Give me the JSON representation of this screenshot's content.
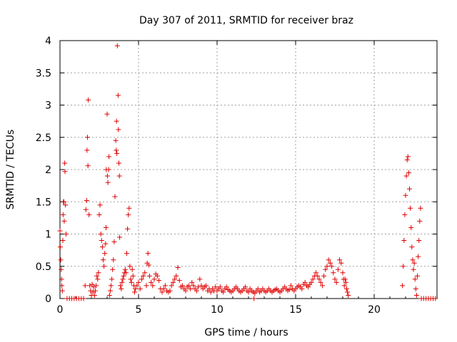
{
  "chart_data": {
    "type": "scatter",
    "title": "Day 307 of 2011, SRMTID for receiver braz",
    "xlabel": "GPS time / hours",
    "ylabel": "SRMTID / TECUs",
    "xlim": [
      0,
      24
    ],
    "ylim": [
      0,
      4
    ],
    "xticks": [
      0,
      5,
      10,
      15,
      20
    ],
    "xtick_labels": [
      "0",
      "5",
      "10",
      "15",
      "20"
    ],
    "yticks": [
      0,
      0.5,
      1,
      1.5,
      2,
      2.5,
      3,
      3.5,
      4
    ],
    "ytick_labels": [
      "0",
      "0.5",
      "1",
      "1.5",
      "2",
      "2.5",
      "3",
      "3.5",
      "4"
    ],
    "grid": true,
    "marker": "+",
    "color": "#e00000",
    "series": [
      {
        "name": "SRMTID",
        "points": [
          [
            0.0,
            1.05
          ],
          [
            0.02,
            0.8
          ],
          [
            0.05,
            0.6
          ],
          [
            0.08,
            0.45
          ],
          [
            0.1,
            0.3
          ],
          [
            0.12,
            0.2
          ],
          [
            0.15,
            0.12
          ],
          [
            0.18,
            0.9
          ],
          [
            0.2,
            1.3
          ],
          [
            0.22,
            1.5
          ],
          [
            0.25,
            1.5
          ],
          [
            0.27,
            1.2
          ],
          [
            0.3,
            2.1
          ],
          [
            0.32,
            1.97
          ],
          [
            0.35,
            1.45
          ],
          [
            0.38,
            1.0
          ],
          [
            0.45,
            0
          ],
          [
            0.6,
            0
          ],
          [
            0.75,
            0
          ],
          [
            0.9,
            0
          ],
          [
            1.05,
            0
          ],
          [
            1.2,
            0
          ],
          [
            1.35,
            0
          ],
          [
            1.5,
            0
          ],
          [
            1.6,
            0.2
          ],
          [
            1.65,
            1.38
          ],
          [
            1.7,
            1.52
          ],
          [
            1.72,
            2.3
          ],
          [
            1.75,
            2.5
          ],
          [
            1.78,
            2.06
          ],
          [
            1.8,
            3.08
          ],
          [
            1.85,
            1.3
          ],
          [
            1.9,
            0.2
          ],
          [
            1.95,
            0.12
          ],
          [
            2.0,
            0.05
          ],
          [
            2.05,
            0.22
          ],
          [
            2.1,
            0.1
          ],
          [
            2.15,
            0.18
          ],
          [
            2.2,
            0.05
          ],
          [
            2.25,
            0.12
          ],
          [
            2.3,
            0.2
          ],
          [
            2.35,
            0.35
          ],
          [
            2.4,
            0.3
          ],
          [
            2.45,
            0.4
          ],
          [
            2.5,
            1.3
          ],
          [
            2.55,
            1.45
          ],
          [
            2.6,
            1.0
          ],
          [
            2.65,
            0.9
          ],
          [
            2.7,
            0.8
          ],
          [
            2.75,
            0.6
          ],
          [
            2.8,
            0.5
          ],
          [
            2.85,
            0.7
          ],
          [
            2.9,
            0.85
          ],
          [
            2.93,
            1.1
          ],
          [
            2.95,
            2.0
          ],
          [
            3.0,
            2.86
          ],
          [
            3.02,
            1.9
          ],
          [
            3.05,
            1.8
          ],
          [
            3.1,
            2.0
          ],
          [
            3.12,
            2.2
          ],
          [
            3.15,
            0.05
          ],
          [
            3.2,
            0.12
          ],
          [
            3.25,
            0.2
          ],
          [
            3.3,
            0.3
          ],
          [
            3.35,
            0.45
          ],
          [
            3.4,
            0.6
          ],
          [
            3.45,
            0.88
          ],
          [
            3.5,
            1.58
          ],
          [
            3.55,
            2.45
          ],
          [
            3.58,
            2.3
          ],
          [
            3.6,
            2.75
          ],
          [
            3.62,
            2.25
          ],
          [
            3.65,
            3.92
          ],
          [
            3.7,
            3.15
          ],
          [
            3.72,
            2.62
          ],
          [
            3.75,
            2.1
          ],
          [
            3.78,
            1.9
          ],
          [
            3.8,
            0.95
          ],
          [
            3.85,
            0.2
          ],
          [
            3.9,
            0.15
          ],
          [
            3.95,
            0.25
          ],
          [
            4.0,
            0.3
          ],
          [
            4.05,
            0.35
          ],
          [
            4.1,
            0.4
          ],
          [
            4.15,
            0.45
          ],
          [
            4.2,
            0.4
          ],
          [
            4.25,
            0.7
          ],
          [
            4.3,
            1.08
          ],
          [
            4.35,
            1.3
          ],
          [
            4.4,
            1.4
          ],
          [
            4.45,
            0.5
          ],
          [
            4.5,
            0.3
          ],
          [
            4.55,
            0.25
          ],
          [
            4.6,
            0.45
          ],
          [
            4.65,
            0.35
          ],
          [
            4.7,
            0.2
          ],
          [
            4.75,
            0.1
          ],
          [
            4.8,
            0.15
          ],
          [
            4.9,
            0.2
          ],
          [
            5.0,
            0.25
          ],
          [
            5.1,
            0.15
          ],
          [
            5.2,
            0.3
          ],
          [
            5.3,
            0.35
          ],
          [
            5.4,
            0.4
          ],
          [
            5.5,
            0.2
          ],
          [
            5.55,
            0.55
          ],
          [
            5.6,
            0.7
          ],
          [
            5.65,
            0.52
          ],
          [
            5.7,
            0.35
          ],
          [
            5.8,
            0.25
          ],
          [
            5.9,
            0.2
          ],
          [
            6.0,
            0.3
          ],
          [
            6.1,
            0.38
          ],
          [
            6.2,
            0.35
          ],
          [
            6.3,
            0.28
          ],
          [
            6.4,
            0.15
          ],
          [
            6.5,
            0.1
          ],
          [
            6.6,
            0.15
          ],
          [
            6.7,
            0.2
          ],
          [
            6.8,
            0.12
          ],
          [
            6.9,
            0.1
          ],
          [
            7.0,
            0.12
          ],
          [
            7.1,
            0.2
          ],
          [
            7.2,
            0.25
          ],
          [
            7.3,
            0.3
          ],
          [
            7.4,
            0.35
          ],
          [
            7.5,
            0.48
          ],
          [
            7.6,
            0.28
          ],
          [
            7.7,
            0.18
          ],
          [
            7.8,
            0.2
          ],
          [
            7.9,
            0.15
          ],
          [
            8.0,
            0.12
          ],
          [
            8.1,
            0.18
          ],
          [
            8.2,
            0.2
          ],
          [
            8.3,
            0.15
          ],
          [
            8.4,
            0.25
          ],
          [
            8.5,
            0.2
          ],
          [
            8.6,
            0.15
          ],
          [
            8.7,
            0.12
          ],
          [
            8.8,
            0.18
          ],
          [
            8.9,
            0.3
          ],
          [
            9.0,
            0.2
          ],
          [
            9.1,
            0.15
          ],
          [
            9.2,
            0.18
          ],
          [
            9.3,
            0.2
          ],
          [
            9.4,
            0.12
          ],
          [
            9.5,
            0.15
          ],
          [
            9.6,
            0.1
          ],
          [
            9.7,
            0.15
          ],
          [
            9.8,
            0.12
          ],
          [
            9.9,
            0.18
          ],
          [
            10.0,
            0.12
          ],
          [
            10.1,
            0.15
          ],
          [
            10.2,
            0.18
          ],
          [
            10.3,
            0.12
          ],
          [
            10.4,
            0.1
          ],
          [
            10.5,
            0.15
          ],
          [
            10.6,
            0.18
          ],
          [
            10.7,
            0.14
          ],
          [
            10.8,
            0.12
          ],
          [
            10.9,
            0.1
          ],
          [
            11.0,
            0.12
          ],
          [
            11.1,
            0.15
          ],
          [
            11.2,
            0.18
          ],
          [
            11.3,
            0.15
          ],
          [
            11.4,
            0.12
          ],
          [
            11.5,
            0.1
          ],
          [
            11.6,
            0.12
          ],
          [
            11.7,
            0.15
          ],
          [
            11.8,
            0.18
          ],
          [
            11.9,
            0.12
          ],
          [
            12.0,
            0.1
          ],
          [
            12.1,
            0.15
          ],
          [
            12.2,
            0.12
          ],
          [
            12.3,
            0.1
          ],
          [
            12.35,
            0
          ],
          [
            12.4,
            0.08
          ],
          [
            12.5,
            0.12
          ],
          [
            12.6,
            0.15
          ],
          [
            12.7,
            0.1
          ],
          [
            12.8,
            0.12
          ],
          [
            12.9,
            0.15
          ],
          [
            13.0,
            0.12
          ],
          [
            13.1,
            0.1
          ],
          [
            13.2,
            0.12
          ],
          [
            13.3,
            0.15
          ],
          [
            13.4,
            0.12
          ],
          [
            13.5,
            0.1
          ],
          [
            13.6,
            0.12
          ],
          [
            13.7,
            0.14
          ],
          [
            13.8,
            0.15
          ],
          [
            13.9,
            0.12
          ],
          [
            14.0,
            0.1
          ],
          [
            14.1,
            0.12
          ],
          [
            14.2,
            0.15
          ],
          [
            14.3,
            0.18
          ],
          [
            14.4,
            0.15
          ],
          [
            14.5,
            0.12
          ],
          [
            14.6,
            0.14
          ],
          [
            14.7,
            0.2
          ],
          [
            14.8,
            0.15
          ],
          [
            14.9,
            0.12
          ],
          [
            15.0,
            0.15
          ],
          [
            15.1,
            0.18
          ],
          [
            15.2,
            0.2
          ],
          [
            15.3,
            0.18
          ],
          [
            15.4,
            0.15
          ],
          [
            15.5,
            0.22
          ],
          [
            15.6,
            0.25
          ],
          [
            15.7,
            0.2
          ],
          [
            15.8,
            0.18
          ],
          [
            15.9,
            0.22
          ],
          [
            16.0,
            0.25
          ],
          [
            16.1,
            0.3
          ],
          [
            16.2,
            0.35
          ],
          [
            16.3,
            0.4
          ],
          [
            16.4,
            0.35
          ],
          [
            16.5,
            0.3
          ],
          [
            16.6,
            0.25
          ],
          [
            16.7,
            0.2
          ],
          [
            16.8,
            0.35
          ],
          [
            16.9,
            0.45
          ],
          [
            17.0,
            0.5
          ],
          [
            17.1,
            0.6
          ],
          [
            17.2,
            0.55
          ],
          [
            17.3,
            0.5
          ],
          [
            17.4,
            0.4
          ],
          [
            17.5,
            0.3
          ],
          [
            17.6,
            0.25
          ],
          [
            17.7,
            0.45
          ],
          [
            17.8,
            0.6
          ],
          [
            17.9,
            0.55
          ],
          [
            18.0,
            0.4
          ],
          [
            18.05,
            0.3
          ],
          [
            18.1,
            0.2
          ],
          [
            18.15,
            0.3
          ],
          [
            18.2,
            0.25
          ],
          [
            18.25,
            0.15
          ],
          [
            18.3,
            0.1
          ],
          [
            18.35,
            0.05
          ],
          [
            21.8,
            0.2
          ],
          [
            21.85,
            0.5
          ],
          [
            21.9,
            0.9
          ],
          [
            21.95,
            1.3
          ],
          [
            22.0,
            1.6
          ],
          [
            22.05,
            1.9
          ],
          [
            22.1,
            2.15
          ],
          [
            22.15,
            2.2
          ],
          [
            22.2,
            1.95
          ],
          [
            22.25,
            1.7
          ],
          [
            22.3,
            1.4
          ],
          [
            22.35,
            1.1
          ],
          [
            22.4,
            0.8
          ],
          [
            22.45,
            0.6
          ],
          [
            22.5,
            0.45
          ],
          [
            22.55,
            0.55
          ],
          [
            22.6,
            0.3
          ],
          [
            22.65,
            0.15
          ],
          [
            22.7,
            0.05
          ],
          [
            22.75,
            0.35
          ],
          [
            22.8,
            0.65
          ],
          [
            22.85,
            0.9
          ],
          [
            22.9,
            1.2
          ],
          [
            22.95,
            1.4
          ],
          [
            23.0,
            0
          ],
          [
            23.15,
            0
          ],
          [
            23.3,
            0
          ],
          [
            23.45,
            0
          ],
          [
            23.6,
            0
          ],
          [
            23.75,
            0
          ],
          [
            23.9,
            0
          ]
        ]
      }
    ]
  }
}
